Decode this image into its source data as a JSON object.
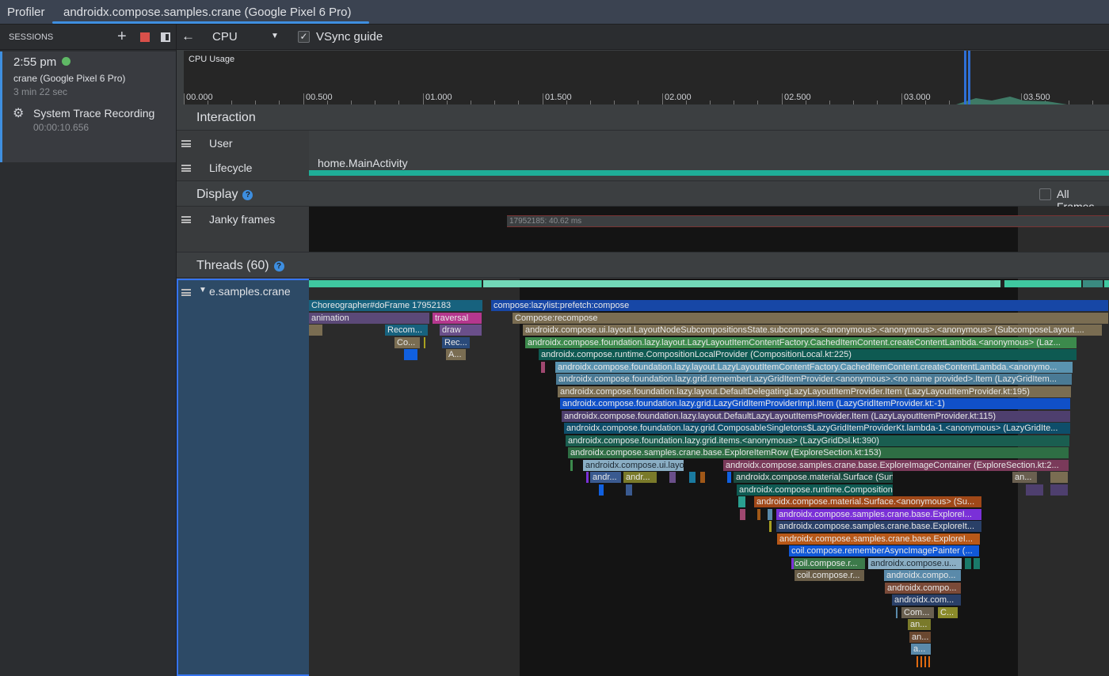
{
  "topbar": {
    "app_label": "Profiler",
    "tab_label": "androidx.compose.samples.crane (Google Pixel 6 Pro)"
  },
  "sessions": {
    "header": "SESSIONS",
    "icons": [
      "plus-icon",
      "stop-icon",
      "panel-toggle-icon"
    ],
    "item": {
      "time": "2:55 pm",
      "status_color": "#5fb865",
      "device": "crane (Google Pixel 6 Pro)",
      "duration": "3 min 22 sec",
      "recording": {
        "title": "System Trace Recording",
        "elapsed": "00:00:10.656"
      }
    }
  },
  "toolbar": {
    "back_icon": "arrow-left-icon",
    "profiler_select": "CPU",
    "vsync_label": "VSync guide",
    "vsync_checked": true
  },
  "cpu_usage": {
    "label": "CPU Usage",
    "ticks": [
      "00.000",
      "00.500",
      "01.000",
      "01.500",
      "02.000",
      "02.500",
      "03.000",
      "03.500"
    ]
  },
  "interaction": {
    "title": "Interaction",
    "rows": [
      "User",
      "Lifecycle"
    ],
    "lifecycle_event": "home.MainActivity"
  },
  "display": {
    "title": "Display",
    "all_frames_label": "All Frames",
    "all_frames_checked": false,
    "janky_label": "Janky frames",
    "janky_frame": "17952185: 40.62 ms"
  },
  "threads": {
    "title": "Threads (60)",
    "thread_name": "e.samples.crane",
    "bars": [
      {
        "label": "Choreographer#doFrame 17952183",
        "color": "#17627e"
      },
      {
        "label": "compose:lazylist:prefetch:compose",
        "color": "#1747a6"
      },
      {
        "label": "animation",
        "color": "#5b4978"
      },
      {
        "label": "traversal",
        "color": "#b5378e"
      },
      {
        "label": "Compose:recompose",
        "color": "#7a6d52"
      },
      {
        "label": "",
        "color": "#7a6d52"
      },
      {
        "label": "Recom...",
        "color": "#17627e"
      },
      {
        "label": "draw",
        "color": "#6a4f8a"
      },
      {
        "label": "androidx.compose.ui.layout.LayoutNodeSubcompositionsState.subcompose.<anonymous>.<anonymous>.<anonymous> (SubcomposeLayout....",
        "color": "#7a6d52"
      },
      {
        "label": "Co...",
        "color": "#7a6d52"
      },
      {
        "label": "Rec...",
        "color": "#2a4a7a"
      },
      {
        "label": "androidx.compose.foundation.lazy.layout.LazyLayoutItemContentFactory.CachedItemContent.createContentLambda.<anonymous> (Laz...",
        "color": "#3c8a4c"
      },
      {
        "label": "",
        "color": "#1060e0"
      },
      {
        "label": "A...",
        "color": "#7a6d52"
      },
      {
        "label": "androidx.compose.runtime.CompositionLocalProvider (CompositionLocal.kt:225)",
        "color": "#0e5a52"
      },
      {
        "label": "androidx.compose.foundation.lazy.layout.LazyLayoutItemContentFactory.CachedItemContent.createContentLambda.<anonymo...",
        "color": "#5a93b0"
      },
      {
        "label": "androidx.compose.foundation.lazy.grid.rememberLazyGridItemProvider.<anonymous>.<no name provided>.Item (LazyGridItem...",
        "color": "#4a7a95"
      },
      {
        "label": "androidx.compose.foundation.lazy.layout.DefaultDelegatingLazyLayoutItemProvider.Item (LazyLayoutItemProvider.kt:195)",
        "color": "#7a6d52"
      },
      {
        "label": "androidx.compose.foundation.lazy.grid.LazyGridItemProviderImpl.Item (LazyGridItemProvider.kt:-1)",
        "color": "#1050c8"
      },
      {
        "label": "androidx.compose.foundation.lazy.layout.DefaultLazyLayoutItemsProvider.Item (LazyLayoutItemProvider.kt:115)",
        "color": "#4e3f6e"
      },
      {
        "label": "androidx.compose.foundation.lazy.grid.ComposableSingletons$LazyGridItemProviderKt.lambda-1.<anonymous> (LazyGridIte...",
        "color": "#0e4e6a"
      },
      {
        "label": "androidx.compose.foundation.lazy.grid.items.<anonymous> (LazyGridDsl.kt:390)",
        "color": "#1a5e50"
      },
      {
        "label": "androidx.compose.samples.crane.base.ExploreItemRow (ExploreSection.kt:153)",
        "color": "#2e6e44"
      },
      {
        "label": "androidx.compose.ui.layout.m...",
        "color": "#8aaec4"
      },
      {
        "label": "androidx.compose.samples.crane.base.ExploreImageContainer (ExploreSection.kt:2...",
        "color": "#7a3a5a"
      },
      {
        "label": "andr...",
        "color": "#3a5a90"
      },
      {
        "label": "andr...",
        "color": "#7a7a2a"
      },
      {
        "label": "androidx.compose.material.Surface (Surface.kt:103)",
        "color": "#1a4a40"
      },
      {
        "label": "an...",
        "color": "#6a6050"
      },
      {
        "label": "androidx.compose.runtime.CompositionLocalProvider (Co...",
        "color": "#0e5a52"
      },
      {
        "label": "androidx.compose.material.Surface.<anonymous> (Su...",
        "color": "#a04818"
      },
      {
        "label": "androidx.compose.samples.crane.base.ExploreI...",
        "color": "#7a30d8"
      },
      {
        "label": "androidx.compose.samples.crane.base.ExploreIt...",
        "color": "#2a4068"
      },
      {
        "label": "androidx.compose.samples.crane.base.ExploreI...",
        "color": "#b85818"
      },
      {
        "label": "coil.compose.rememberAsyncImagePainter (...",
        "color": "#1058d8"
      },
      {
        "label": "coil.compose.r...",
        "color": "#3c7a4a"
      },
      {
        "label": "androidx.compose.u...",
        "color": "#8aaec4"
      },
      {
        "label": "coil.compose.r...",
        "color": "#6a5e48"
      },
      {
        "label": "androidx.compo...",
        "color": "#5a8aaa"
      },
      {
        "label": "androidx.compo...",
        "color": "#7a4a38"
      },
      {
        "label": "androidx.com...",
        "color": "#2a4068"
      },
      {
        "label": "Com...",
        "color": "#6a6050"
      },
      {
        "label": "C...",
        "color": "#8a8a2a"
      },
      {
        "label": "an...",
        "color": "#7a7a2a"
      },
      {
        "label": "an...",
        "color": "#6a4830"
      },
      {
        "label": "a...",
        "color": "#5a8aaa"
      }
    ]
  }
}
